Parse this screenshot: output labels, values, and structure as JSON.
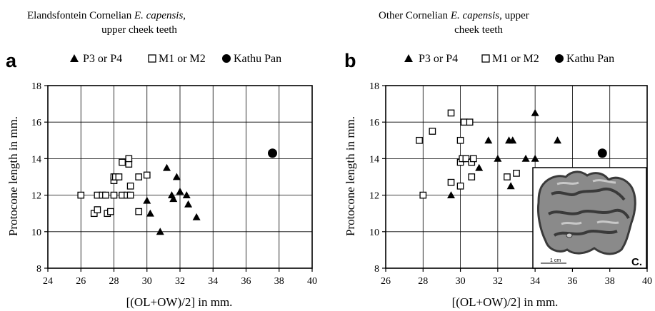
{
  "chart_data": [
    {
      "type": "scatter",
      "panel": "a",
      "title_line1_text": "Elandsfontein Cornelian ",
      "title_line1_italic": "E. capensis",
      "title_line1_tail": ",",
      "title_line2": "upper cheek teeth",
      "xlabel": "[(OL+OW)/2] in mm.",
      "ylabel": "Protocone length in mm.",
      "xlim": [
        24,
        40
      ],
      "ylim": [
        8,
        18
      ],
      "xticks": [
        "24",
        "26",
        "28",
        "30",
        "32",
        "34",
        "36",
        "38",
        "40"
      ],
      "yticks": [
        "8",
        "10",
        "12",
        "14",
        "16",
        "18"
      ],
      "grid": true,
      "legend_placement": "top",
      "series": [
        {
          "name": "P3 or P4",
          "marker": "triangle",
          "x": [
            31.2,
            31.8,
            31.5,
            31.6,
            32.0,
            32.4,
            32.5,
            33.0,
            30.0,
            30.8,
            30.2
          ],
          "y": [
            13.5,
            13.0,
            12.0,
            11.8,
            12.2,
            12.0,
            11.5,
            10.8,
            11.7,
            10.0,
            11.0
          ]
        },
        {
          "name": "M1 or M2",
          "marker": "square",
          "x": [
            26.0,
            26.8,
            27.0,
            27.0,
            27.3,
            27.5,
            27.6,
            27.8,
            28.0,
            28.0,
            28.0,
            28.1,
            28.3,
            28.5,
            28.5,
            28.8,
            28.9,
            28.9,
            29.0,
            29.0,
            29.5,
            29.5,
            30.0
          ],
          "y": [
            12.0,
            11.0,
            12.0,
            11.2,
            12.0,
            12.0,
            11.0,
            11.1,
            12.0,
            12.8,
            13.0,
            13.0,
            13.0,
            13.8,
            12.0,
            12.0,
            13.7,
            14.0,
            12.5,
            12.0,
            13.0,
            11.1,
            13.1
          ]
        },
        {
          "name": "Kathu Pan",
          "marker": "circle",
          "x": [
            37.6
          ],
          "y": [
            14.3
          ]
        }
      ]
    },
    {
      "type": "scatter",
      "panel": "b",
      "title_line1_text": "Other Cornelian ",
      "title_line1_italic": "E. capensis",
      "title_line1_tail": ", upper",
      "title_line2": "cheek teeth",
      "xlabel": "[(OL+OW)/2] in mm.",
      "ylabel": "Protocone length in mm.",
      "xlim": [
        26,
        40
      ],
      "ylim": [
        8,
        18
      ],
      "xticks": [
        "26",
        "28",
        "30",
        "32",
        "34",
        "36",
        "38",
        "40"
      ],
      "yticks": [
        "8",
        "10",
        "12",
        "14",
        "16",
        "18"
      ],
      "grid": true,
      "legend_placement": "top",
      "series": [
        {
          "name": "P3 or P4",
          "marker": "triangle",
          "x": [
            31.5,
            32.6,
            32.8,
            34.0,
            35.2,
            32.0,
            33.5,
            34.0,
            31.0,
            29.5,
            32.7
          ],
          "y": [
            15.0,
            15.0,
            15.0,
            16.5,
            15.0,
            14.0,
            14.0,
            14.0,
            13.5,
            12.0,
            12.5
          ]
        },
        {
          "name": "M1 or M2",
          "marker": "square",
          "x": [
            27.8,
            28.0,
            28.5,
            29.5,
            29.5,
            30.0,
            30.0,
            30.0,
            30.1,
            30.2,
            30.3,
            30.5,
            30.6,
            30.7,
            30.6,
            32.5,
            33.0
          ],
          "y": [
            15.0,
            12.0,
            15.5,
            16.5,
            12.7,
            15.0,
            13.8,
            12.5,
            14.0,
            16.0,
            14.0,
            16.0,
            13.8,
            14.0,
            13.0,
            13.0,
            13.2
          ]
        },
        {
          "name": "Kathu Pan",
          "marker": "circle",
          "x": [
            37.6
          ],
          "y": [
            14.3
          ]
        }
      ]
    }
  ],
  "inset": {
    "scale_label": "1 cm",
    "letter": "C."
  },
  "colors": {
    "ink": "#000000",
    "grid": "#000000",
    "photo_dark": "#3a3a3a",
    "photo_mid": "#8a8a8a",
    "photo_light": "#c8c8c8"
  }
}
